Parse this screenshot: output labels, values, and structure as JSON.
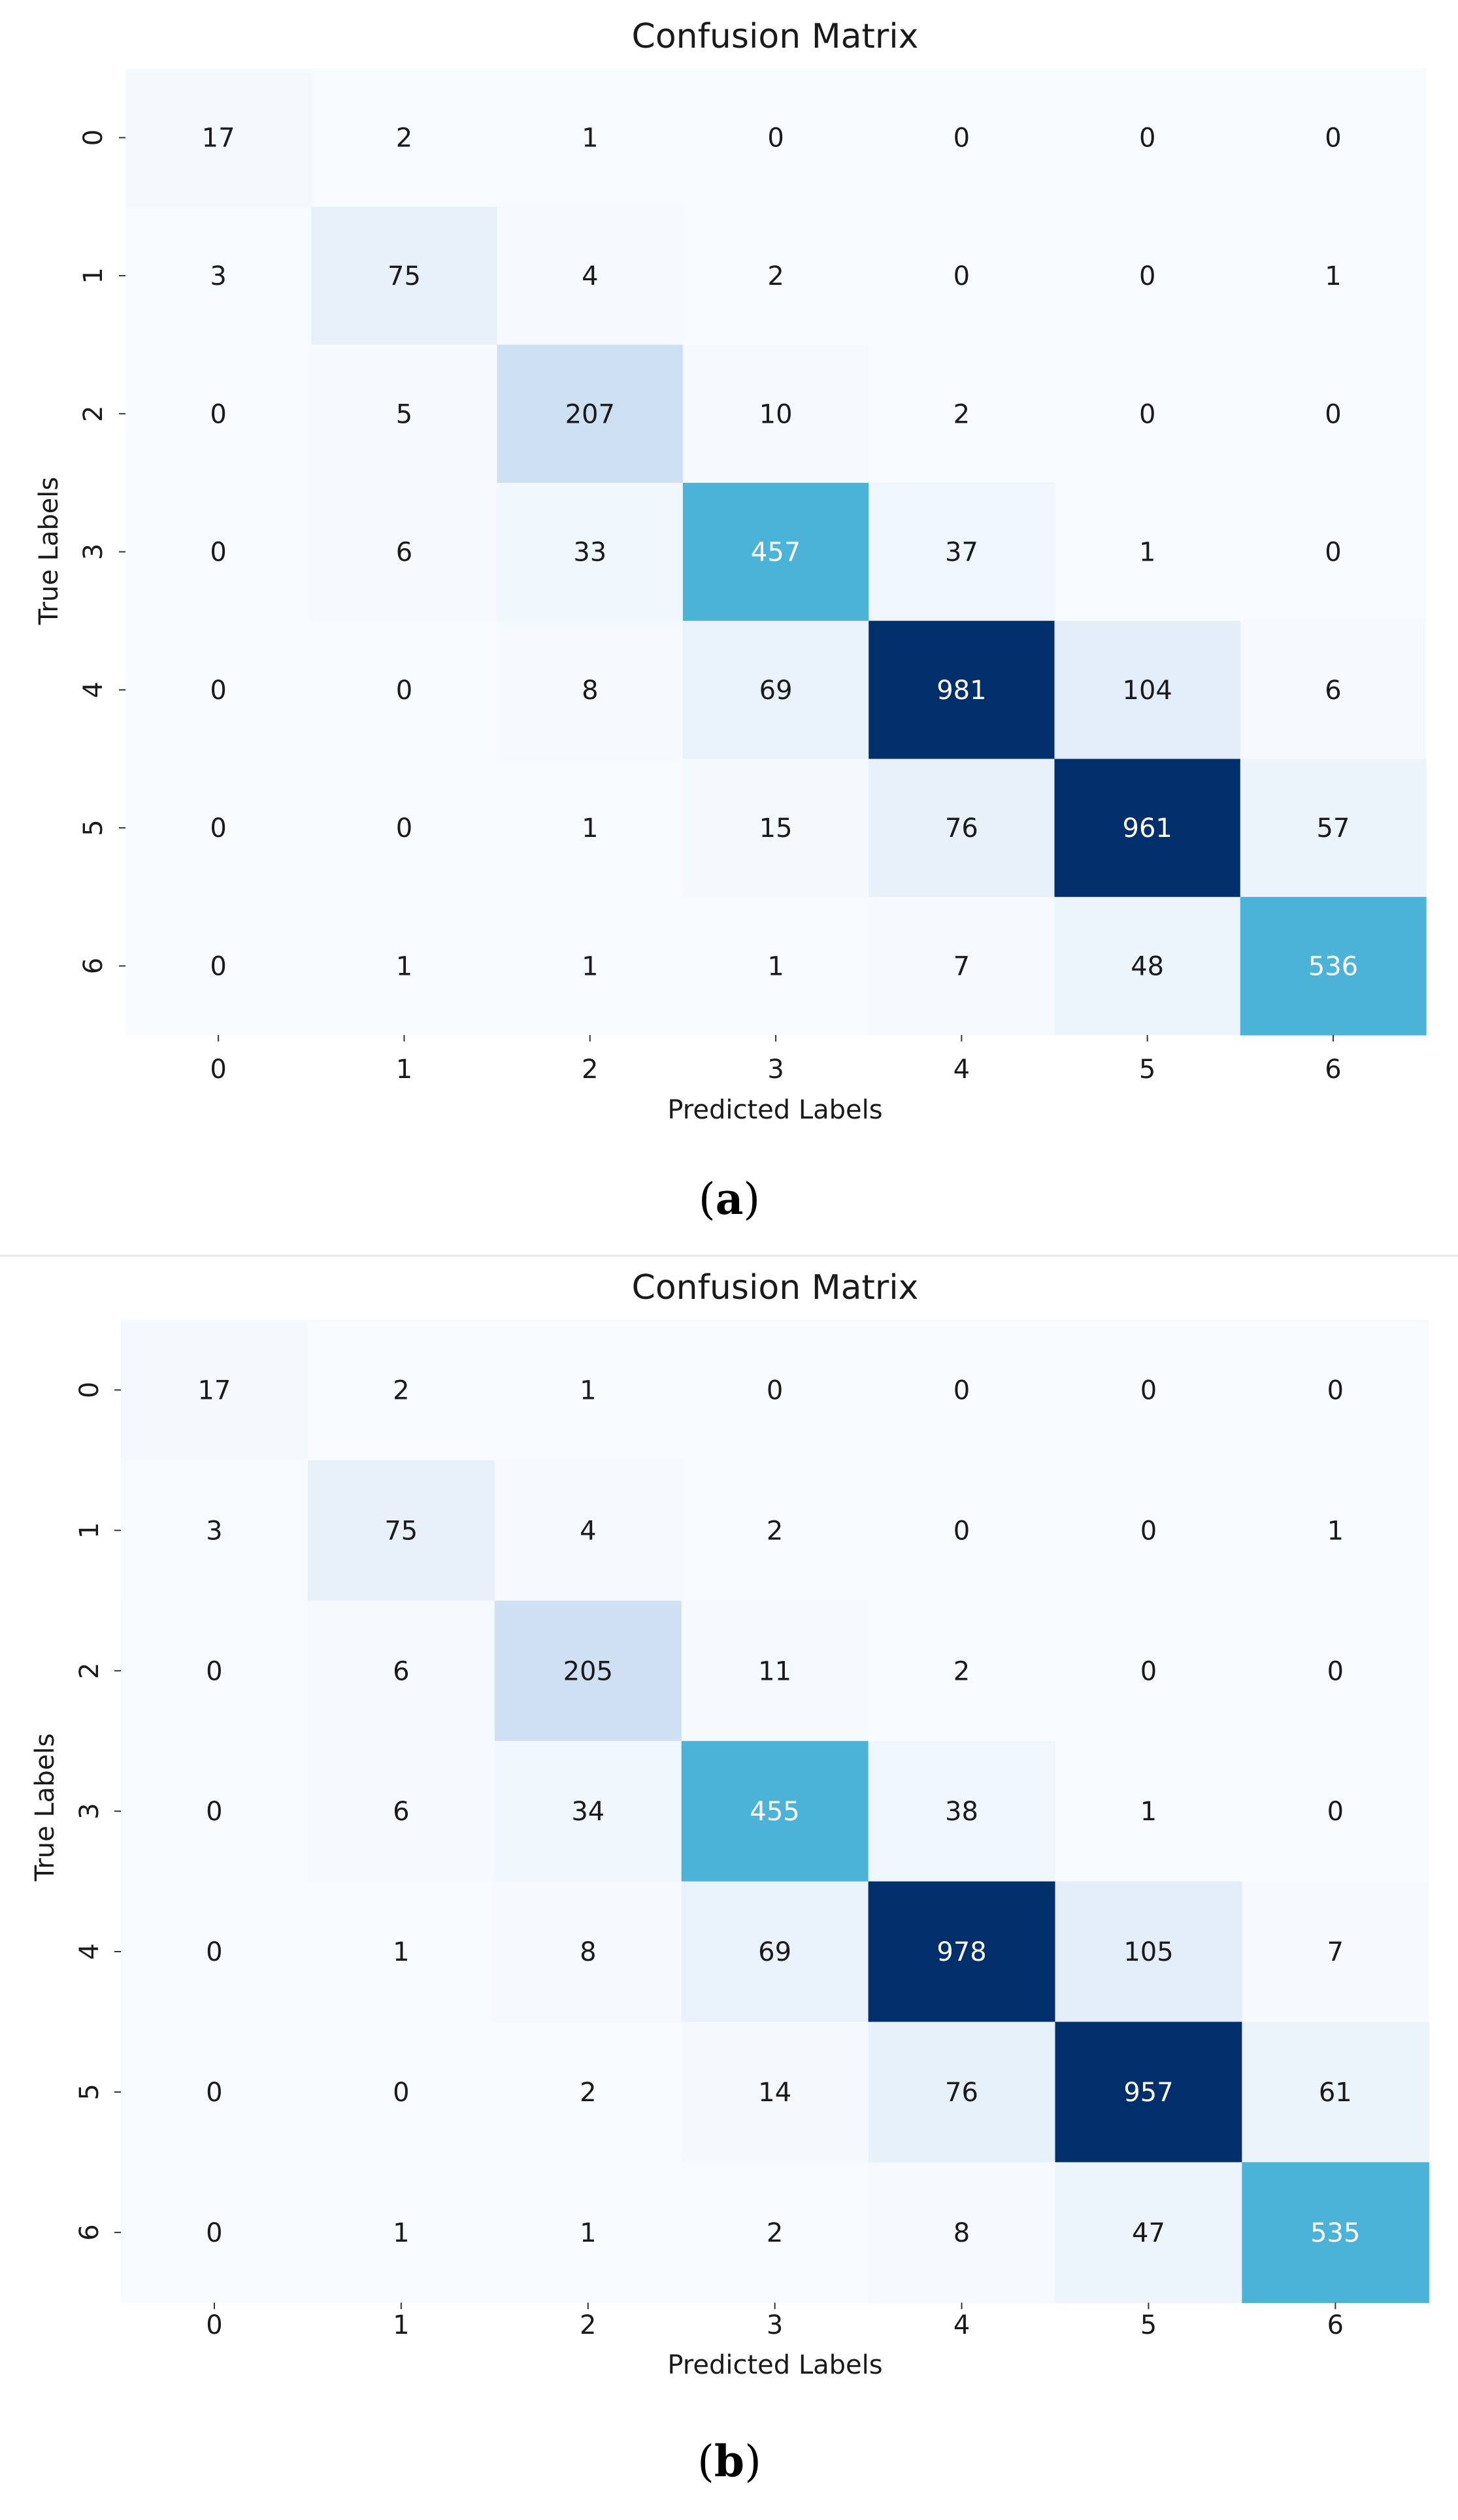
{
  "chart_data": [
    {
      "type": "heatmap",
      "title": "Confusion Matrix",
      "xlabel": "Predicted Labels",
      "ylabel": "True Labels",
      "x_categories": [
        "0",
        "1",
        "2",
        "3",
        "4",
        "5",
        "6"
      ],
      "y_categories": [
        "0",
        "1",
        "2",
        "3",
        "4",
        "5",
        "6"
      ],
      "values": [
        [
          17,
          2,
          1,
          0,
          0,
          0,
          0
        ],
        [
          3,
          75,
          4,
          2,
          0,
          0,
          1
        ],
        [
          0,
          5,
          207,
          10,
          2,
          0,
          0
        ],
        [
          0,
          6,
          33,
          457,
          37,
          1,
          0
        ],
        [
          0,
          0,
          8,
          69,
          981,
          104,
          6
        ],
        [
          0,
          0,
          1,
          15,
          76,
          961,
          57
        ],
        [
          0,
          1,
          1,
          1,
          7,
          48,
          536
        ]
      ],
      "colormap": "Blues",
      "vmin": 0,
      "vmax": 981,
      "colorbar": false,
      "caption_label": "a"
    },
    {
      "type": "heatmap",
      "title": "Confusion Matrix",
      "xlabel": "Predicted Labels",
      "ylabel": "True Labels",
      "x_categories": [
        "0",
        "1",
        "2",
        "3",
        "4",
        "5",
        "6"
      ],
      "y_categories": [
        "0",
        "1",
        "2",
        "3",
        "4",
        "5",
        "6"
      ],
      "values": [
        [
          17,
          2,
          1,
          0,
          0,
          0,
          0
        ],
        [
          3,
          75,
          4,
          2,
          0,
          0,
          1
        ],
        [
          0,
          6,
          205,
          11,
          2,
          0,
          0
        ],
        [
          0,
          6,
          34,
          455,
          38,
          1,
          0
        ],
        [
          0,
          1,
          8,
          69,
          978,
          105,
          7
        ],
        [
          0,
          0,
          2,
          14,
          76,
          957,
          61
        ],
        [
          0,
          1,
          1,
          2,
          8,
          47,
          535
        ]
      ],
      "colormap": "Blues",
      "vmin": 0,
      "vmax": 978,
      "colorbar": false,
      "caption_label": "b"
    }
  ],
  "colors": {
    "cell_low": "#f7fbff",
    "cell_mid": "#4bb3d8",
    "cell_high_light": "#00a8d4",
    "cell_high": "#002f6c",
    "text_dark": "#1a1a1a",
    "text_light": "#ffffff"
  }
}
